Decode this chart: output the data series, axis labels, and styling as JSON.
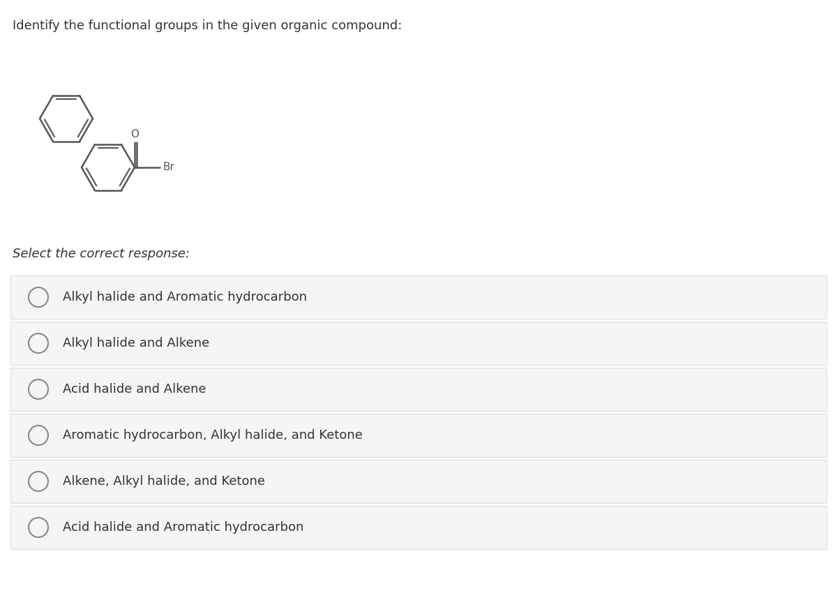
{
  "title": "Identify the functional groups in the given organic compound:",
  "title_fontsize": 13,
  "title_style": "normal",
  "select_text": "Select the correct response:",
  "select_fontsize": 13,
  "select_style": "italic",
  "options": [
    "Alkyl halide and Aromatic hydrocarbon",
    "Alkyl halide and Alkene",
    "Acid halide and Alkene",
    "Aromatic hydrocarbon, Alkyl halide, and Ketone",
    "Alkene, Alkyl halide, and Ketone",
    "Acid halide and Aromatic hydrocarbon"
  ],
  "option_fontsize": 13,
  "bg_color": "#ffffff",
  "option_bg": "#f5f5f5",
  "option_border": "#dddddd",
  "text_color": "#333333",
  "radio_color": "#888888",
  "struct_color": "#555555",
  "br_color": "#8B4513"
}
